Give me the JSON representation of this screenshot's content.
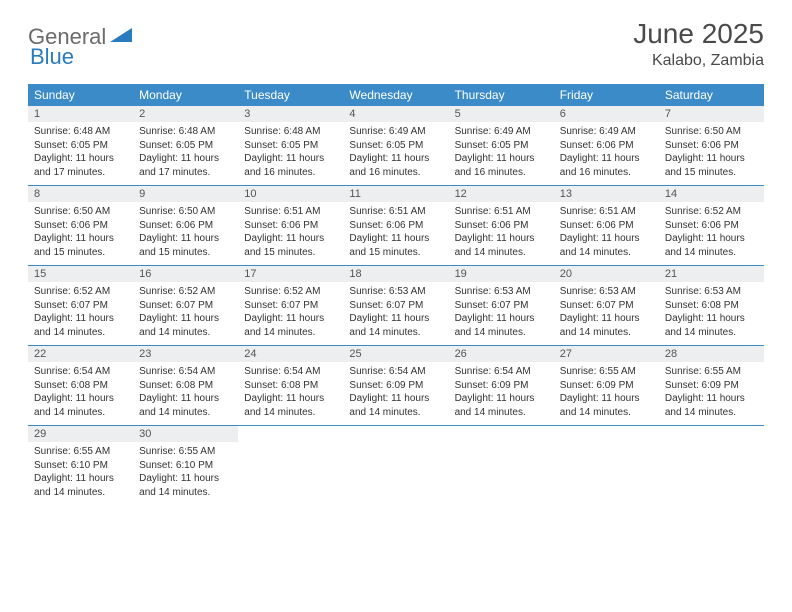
{
  "brand": {
    "part1": "General",
    "part2": "Blue"
  },
  "title": "June 2025",
  "location": "Kalabo, Zambia",
  "colors": {
    "header_bg": "#3b8bc9",
    "header_text": "#ffffff",
    "daynum_bg": "#eceeef",
    "border": "#3b8bc9",
    "title_color": "#4a4a4a",
    "logo_gray": "#6b6b6b",
    "logo_blue": "#2b7bbf"
  },
  "day_names": [
    "Sunday",
    "Monday",
    "Tuesday",
    "Wednesday",
    "Thursday",
    "Friday",
    "Saturday"
  ],
  "weeks": [
    [
      {
        "n": "1",
        "sunrise": "6:48 AM",
        "sunset": "6:05 PM",
        "daylight": "11 hours and 17 minutes."
      },
      {
        "n": "2",
        "sunrise": "6:48 AM",
        "sunset": "6:05 PM",
        "daylight": "11 hours and 17 minutes."
      },
      {
        "n": "3",
        "sunrise": "6:48 AM",
        "sunset": "6:05 PM",
        "daylight": "11 hours and 16 minutes."
      },
      {
        "n": "4",
        "sunrise": "6:49 AM",
        "sunset": "6:05 PM",
        "daylight": "11 hours and 16 minutes."
      },
      {
        "n": "5",
        "sunrise": "6:49 AM",
        "sunset": "6:05 PM",
        "daylight": "11 hours and 16 minutes."
      },
      {
        "n": "6",
        "sunrise": "6:49 AM",
        "sunset": "6:06 PM",
        "daylight": "11 hours and 16 minutes."
      },
      {
        "n": "7",
        "sunrise": "6:50 AM",
        "sunset": "6:06 PM",
        "daylight": "11 hours and 15 minutes."
      }
    ],
    [
      {
        "n": "8",
        "sunrise": "6:50 AM",
        "sunset": "6:06 PM",
        "daylight": "11 hours and 15 minutes."
      },
      {
        "n": "9",
        "sunrise": "6:50 AM",
        "sunset": "6:06 PM",
        "daylight": "11 hours and 15 minutes."
      },
      {
        "n": "10",
        "sunrise": "6:51 AM",
        "sunset": "6:06 PM",
        "daylight": "11 hours and 15 minutes."
      },
      {
        "n": "11",
        "sunrise": "6:51 AM",
        "sunset": "6:06 PM",
        "daylight": "11 hours and 15 minutes."
      },
      {
        "n": "12",
        "sunrise": "6:51 AM",
        "sunset": "6:06 PM",
        "daylight": "11 hours and 14 minutes."
      },
      {
        "n": "13",
        "sunrise": "6:51 AM",
        "sunset": "6:06 PM",
        "daylight": "11 hours and 14 minutes."
      },
      {
        "n": "14",
        "sunrise": "6:52 AM",
        "sunset": "6:06 PM",
        "daylight": "11 hours and 14 minutes."
      }
    ],
    [
      {
        "n": "15",
        "sunrise": "6:52 AM",
        "sunset": "6:07 PM",
        "daylight": "11 hours and 14 minutes."
      },
      {
        "n": "16",
        "sunrise": "6:52 AM",
        "sunset": "6:07 PM",
        "daylight": "11 hours and 14 minutes."
      },
      {
        "n": "17",
        "sunrise": "6:52 AM",
        "sunset": "6:07 PM",
        "daylight": "11 hours and 14 minutes."
      },
      {
        "n": "18",
        "sunrise": "6:53 AM",
        "sunset": "6:07 PM",
        "daylight": "11 hours and 14 minutes."
      },
      {
        "n": "19",
        "sunrise": "6:53 AM",
        "sunset": "6:07 PM",
        "daylight": "11 hours and 14 minutes."
      },
      {
        "n": "20",
        "sunrise": "6:53 AM",
        "sunset": "6:07 PM",
        "daylight": "11 hours and 14 minutes."
      },
      {
        "n": "21",
        "sunrise": "6:53 AM",
        "sunset": "6:08 PM",
        "daylight": "11 hours and 14 minutes."
      }
    ],
    [
      {
        "n": "22",
        "sunrise": "6:54 AM",
        "sunset": "6:08 PM",
        "daylight": "11 hours and 14 minutes."
      },
      {
        "n": "23",
        "sunrise": "6:54 AM",
        "sunset": "6:08 PM",
        "daylight": "11 hours and 14 minutes."
      },
      {
        "n": "24",
        "sunrise": "6:54 AM",
        "sunset": "6:08 PM",
        "daylight": "11 hours and 14 minutes."
      },
      {
        "n": "25",
        "sunrise": "6:54 AM",
        "sunset": "6:09 PM",
        "daylight": "11 hours and 14 minutes."
      },
      {
        "n": "26",
        "sunrise": "6:54 AM",
        "sunset": "6:09 PM",
        "daylight": "11 hours and 14 minutes."
      },
      {
        "n": "27",
        "sunrise": "6:55 AM",
        "sunset": "6:09 PM",
        "daylight": "11 hours and 14 minutes."
      },
      {
        "n": "28",
        "sunrise": "6:55 AM",
        "sunset": "6:09 PM",
        "daylight": "11 hours and 14 minutes."
      }
    ],
    [
      {
        "n": "29",
        "sunrise": "6:55 AM",
        "sunset": "6:10 PM",
        "daylight": "11 hours and 14 minutes."
      },
      {
        "n": "30",
        "sunrise": "6:55 AM",
        "sunset": "6:10 PM",
        "daylight": "11 hours and 14 minutes."
      },
      null,
      null,
      null,
      null,
      null
    ]
  ],
  "labels": {
    "sunrise": "Sunrise:",
    "sunset": "Sunset:",
    "daylight": "Daylight:"
  }
}
